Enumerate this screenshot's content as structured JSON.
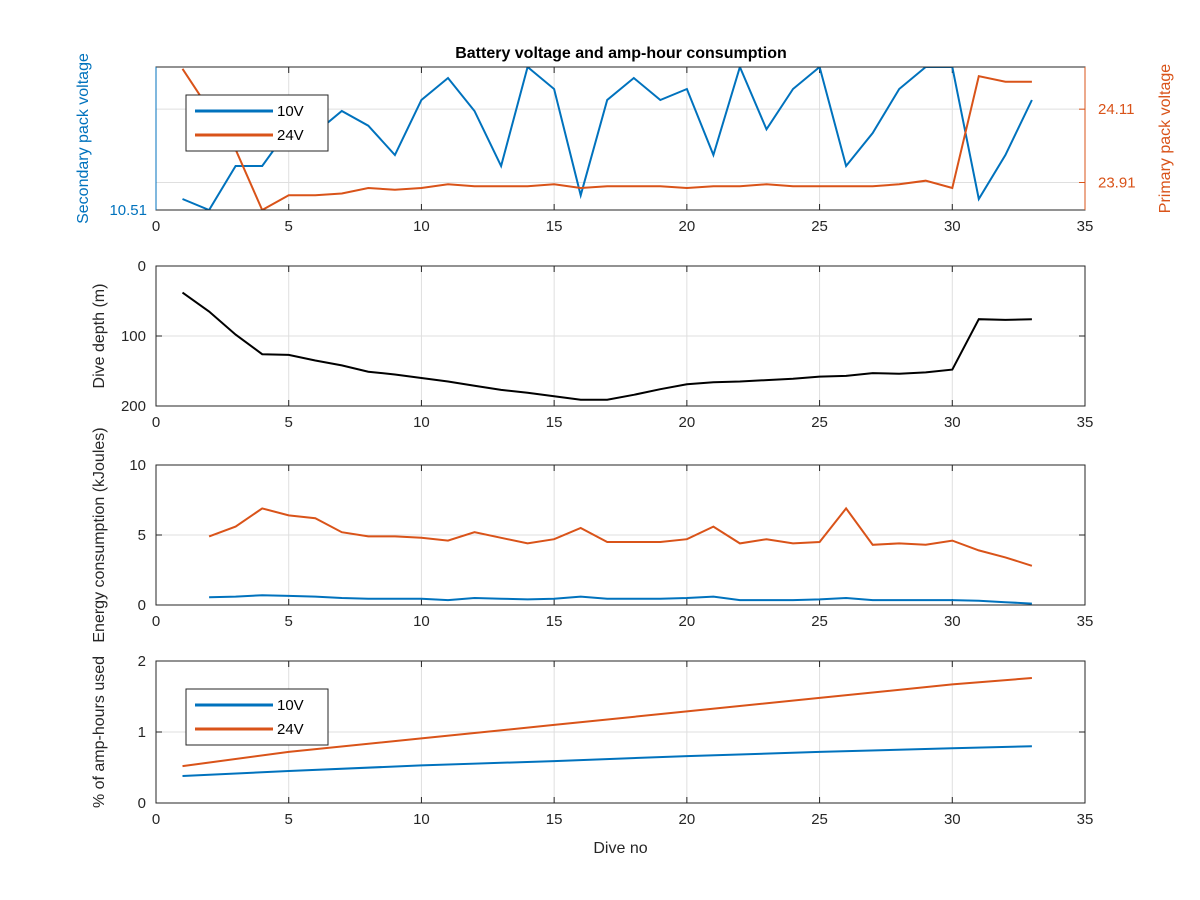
{
  "figure": {
    "title": "Battery voltage and amp-hour consumption",
    "colors": {
      "v10": "#0072BD",
      "v24": "#D95319",
      "depth": "#000000",
      "axis": "#262626",
      "grid": "#dfdfdf"
    }
  },
  "chart_data": [
    {
      "type": "line",
      "title": "Battery voltage and amp-hour consumption",
      "xlabel": "",
      "xlim": [
        0,
        35
      ],
      "xticks": [
        0,
        5,
        10,
        15,
        20,
        25,
        30,
        35
      ],
      "grid": true,
      "legend": {
        "placement": "top-left",
        "entries": [
          "10V",
          "24V"
        ]
      },
      "y_left": {
        "label": "Secondary pack voltage",
        "color": "#0072BD",
        "ylim": [
          10.51,
          10.549
        ],
        "ticks": [
          10.51
        ],
        "tick_labels": [
          "10.51"
        ]
      },
      "y_right": {
        "label": "Primary pack voltage",
        "color": "#D95319",
        "ylim": [
          23.835,
          24.225
        ],
        "ticks": [
          23.91,
          24.11
        ],
        "tick_labels": [
          "23.91",
          "24.11"
        ]
      },
      "series": [
        {
          "name": "10V",
          "axis": "left",
          "color": "#0072BD",
          "x": [
            1,
            2,
            3,
            4,
            5,
            6,
            7,
            8,
            9,
            10,
            11,
            12,
            13,
            14,
            15,
            16,
            17,
            18,
            19,
            20,
            21,
            22,
            23,
            24,
            25,
            26,
            27,
            28,
            29,
            30,
            31,
            32,
            33
          ],
          "y": [
            10.513,
            10.51,
            10.522,
            10.522,
            10.532,
            10.531,
            10.537,
            10.533,
            10.525,
            10.54,
            10.546,
            10.537,
            10.522,
            10.549,
            10.543,
            10.514,
            10.54,
            10.546,
            10.54,
            10.543,
            10.525,
            10.549,
            10.532,
            10.543,
            10.549,
            10.522,
            10.531,
            10.543,
            10.549,
            10.549,
            10.513,
            10.525,
            10.54
          ]
        },
        {
          "name": "24V",
          "axis": "right",
          "color": "#D95319",
          "x": [
            1,
            2,
            3,
            4,
            5,
            6,
            7,
            8,
            9,
            10,
            11,
            12,
            13,
            14,
            15,
            16,
            17,
            18,
            19,
            20,
            21,
            22,
            23,
            24,
            25,
            26,
            27,
            28,
            29,
            30,
            31,
            32,
            33
          ],
          "y": [
            24.22,
            24.11,
            24.0,
            23.835,
            23.875,
            23.875,
            23.88,
            23.895,
            23.89,
            23.895,
            23.905,
            23.9,
            23.9,
            23.9,
            23.905,
            23.895,
            23.9,
            23.9,
            23.9,
            23.895,
            23.9,
            23.9,
            23.905,
            23.9,
            23.9,
            23.9,
            23.9,
            23.905,
            23.915,
            23.895,
            24.2,
            24.185,
            24.185
          ]
        }
      ]
    },
    {
      "type": "line",
      "xlabel": "",
      "ylabel": "Dive depth (m)",
      "xlim": [
        0,
        35
      ],
      "ylim": [
        0,
        200
      ],
      "y_reversed": true,
      "xticks": [
        0,
        5,
        10,
        15,
        20,
        25,
        30,
        35
      ],
      "yticks": [
        0,
        100,
        200
      ],
      "grid": true,
      "series": [
        {
          "color": "#000000",
          "x": [
            1,
            2,
            3,
            4,
            5,
            6,
            7,
            8,
            9,
            10,
            11,
            12,
            13,
            14,
            15,
            16,
            17,
            18,
            19,
            20,
            21,
            22,
            23,
            24,
            25,
            26,
            27,
            28,
            29,
            30,
            31,
            32,
            33
          ],
          "y": [
            38,
            65,
            98,
            126,
            127,
            135,
            142,
            151,
            155,
            160,
            165,
            171,
            177,
            181,
            186,
            191,
            191,
            184,
            176,
            169,
            166,
            165,
            163,
            161,
            158,
            157,
            153,
            154,
            152,
            148,
            76,
            77,
            76
          ]
        }
      ]
    },
    {
      "type": "line",
      "xlabel": "",
      "ylabel": "Energy consumption (kJoules)",
      "xlim": [
        0,
        35
      ],
      "ylim": [
        0,
        10
      ],
      "xticks": [
        0,
        5,
        10,
        15,
        20,
        25,
        30,
        35
      ],
      "yticks": [
        0,
        5,
        10
      ],
      "grid": true,
      "series": [
        {
          "color": "#D95319",
          "x": [
            2,
            3,
            4,
            5,
            6,
            7,
            8,
            9,
            10,
            11,
            12,
            13,
            14,
            15,
            16,
            17,
            18,
            19,
            20,
            21,
            22,
            23,
            24,
            25,
            26,
            27,
            28,
            29,
            30,
            31,
            32,
            33
          ],
          "y": [
            4.9,
            5.6,
            6.9,
            6.4,
            6.2,
            5.2,
            4.9,
            4.9,
            4.8,
            4.6,
            5.2,
            4.8,
            4.4,
            4.7,
            5.5,
            4.5,
            4.5,
            4.5,
            4.7,
            5.6,
            4.4,
            4.7,
            4.4,
            4.5,
            6.9,
            4.3,
            4.4,
            4.3,
            4.6,
            3.9,
            3.4,
            2.8
          ]
        },
        {
          "color": "#0072BD",
          "x": [
            2,
            3,
            4,
            5,
            6,
            7,
            8,
            9,
            10,
            11,
            12,
            13,
            14,
            15,
            16,
            17,
            18,
            19,
            20,
            21,
            22,
            23,
            24,
            25,
            26,
            27,
            28,
            29,
            30,
            31,
            32,
            33
          ],
          "y": [
            0.55,
            0.6,
            0.7,
            0.65,
            0.6,
            0.5,
            0.45,
            0.45,
            0.45,
            0.35,
            0.5,
            0.45,
            0.4,
            0.45,
            0.6,
            0.45,
            0.45,
            0.45,
            0.5,
            0.6,
            0.35,
            0.35,
            0.35,
            0.4,
            0.5,
            0.35,
            0.35,
            0.35,
            0.35,
            0.3,
            0.2,
            0.1
          ]
        }
      ]
    },
    {
      "type": "line",
      "xlabel": "Dive no",
      "ylabel": "% of amp-hours used",
      "xlim": [
        0,
        35
      ],
      "ylim": [
        0,
        2
      ],
      "xticks": [
        0,
        5,
        10,
        15,
        20,
        25,
        30,
        35
      ],
      "yticks": [
        0,
        1,
        2
      ],
      "grid": true,
      "legend": {
        "placement": "top-left",
        "entries": [
          "10V",
          "24V"
        ]
      },
      "series": [
        {
          "name": "10V",
          "color": "#0072BD",
          "x": [
            1,
            5,
            10,
            15,
            20,
            25,
            30,
            33
          ],
          "y": [
            0.38,
            0.45,
            0.53,
            0.59,
            0.66,
            0.72,
            0.77,
            0.8
          ]
        },
        {
          "name": "24V",
          "color": "#D95319",
          "x": [
            1,
            5,
            10,
            15,
            20,
            25,
            30,
            33
          ],
          "y": [
            0.52,
            0.72,
            0.91,
            1.1,
            1.29,
            1.48,
            1.67,
            1.76
          ]
        }
      ]
    }
  ]
}
